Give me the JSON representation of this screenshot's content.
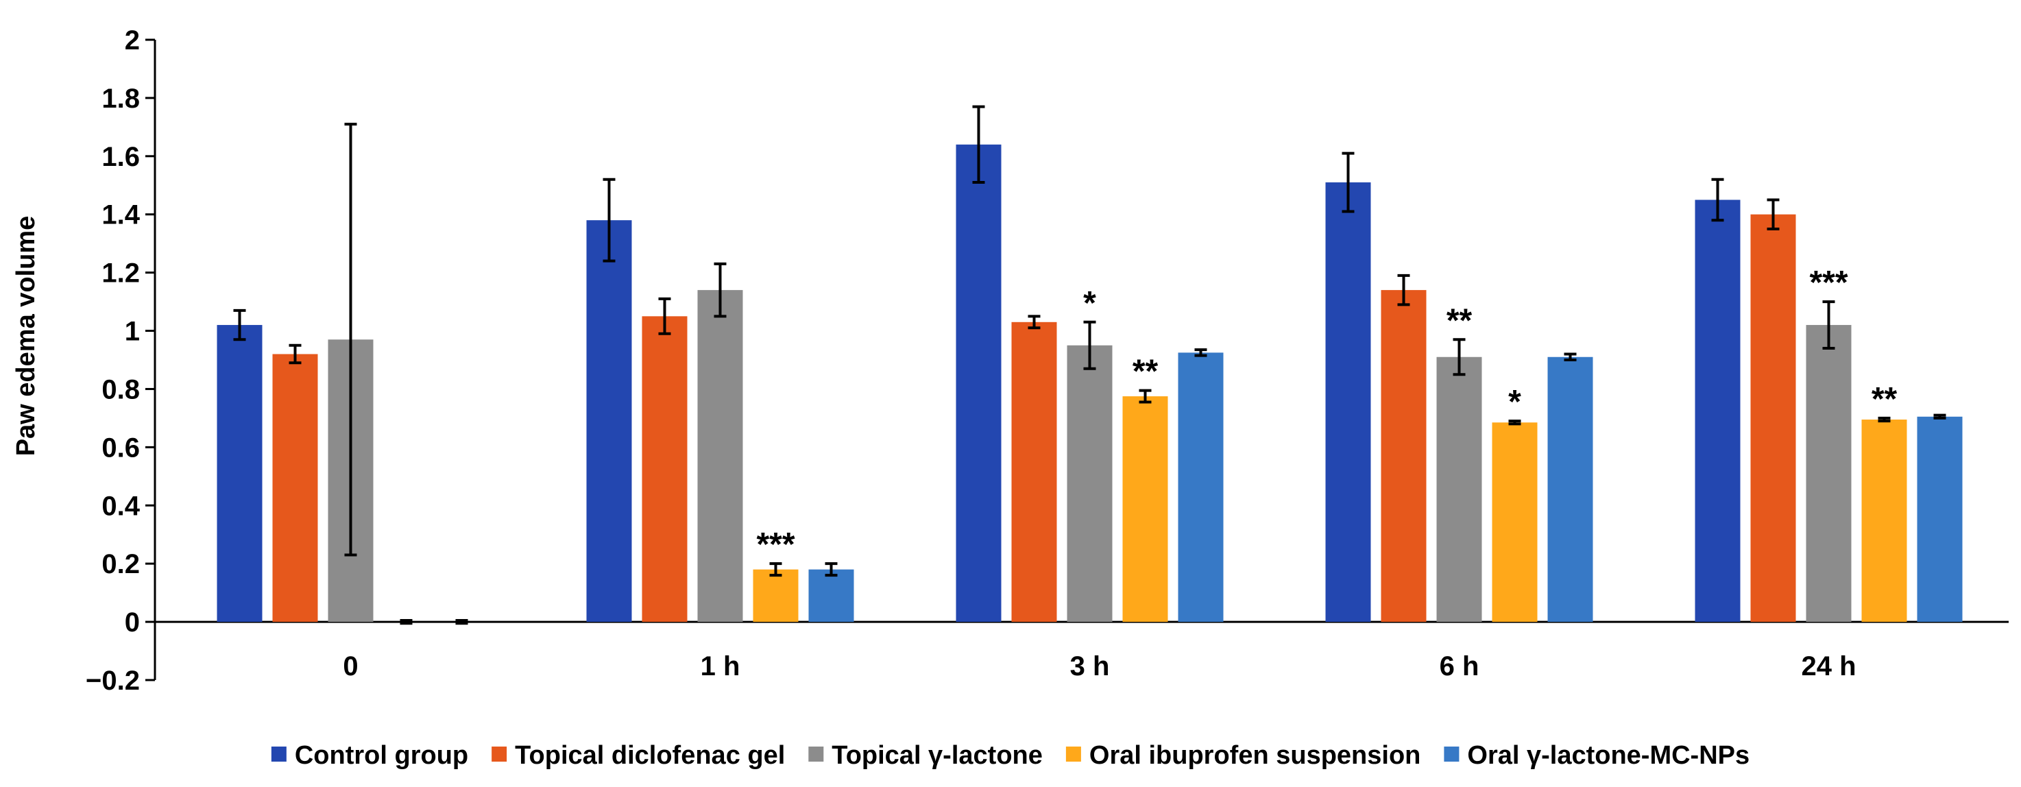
{
  "chart_data": {
    "type": "bar",
    "title": "",
    "xlabel": "",
    "ylabel": "Paw edema volume",
    "ylim": [
      -0.2,
      2
    ],
    "yticks": [
      -0.2,
      0,
      0.2,
      0.4,
      0.6,
      0.8,
      1,
      1.2,
      1.4,
      1.6,
      1.8,
      2
    ],
    "ytick_labels": [
      "−0.2",
      "0",
      "0.2",
      "0.4",
      "0.6",
      "0.8",
      "1",
      "1.2",
      "1.4",
      "1.6",
      "1.8",
      "2"
    ],
    "grid": false,
    "legend_position": "bottom",
    "categories": [
      "0",
      "1 h",
      "3 h",
      "6 h",
      "24 h"
    ],
    "series": [
      {
        "name": "Control group",
        "color": "#2347B0",
        "values": [
          1.02,
          1.38,
          1.64,
          1.51,
          1.45
        ],
        "errors": [
          0.05,
          0.14,
          0.13,
          0.1,
          0.07
        ],
        "annotations": [
          "",
          "",
          "",
          "",
          ""
        ]
      },
      {
        "name": "Topical diclofenac gel",
        "color": "#E6581C",
        "values": [
          0.92,
          1.05,
          1.03,
          1.14,
          1.4
        ],
        "errors": [
          0.03,
          0.06,
          0.02,
          0.05,
          0.05
        ],
        "annotations": [
          "",
          "",
          "",
          "",
          ""
        ]
      },
      {
        "name": "Topical γ-lactone",
        "color": "#8C8C8C",
        "values": [
          0.97,
          1.14,
          0.95,
          0.91,
          1.02
        ],
        "errors": [
          0.74,
          0.09,
          0.08,
          0.06,
          0.08
        ],
        "annotations": [
          "",
          "",
          "*",
          "**",
          "***"
        ]
      },
      {
        "name": "Oral ibuprofen suspension",
        "color": "#FFA81A",
        "values": [
          0,
          0.18,
          0.775,
          0.685,
          0.695
        ],
        "errors": [
          0.005,
          0.02,
          0.02,
          0.005,
          0.005
        ],
        "annotations": [
          "",
          "***",
          "**",
          "*",
          "**"
        ]
      },
      {
        "name": "Oral γ-lactone-MC-NPs",
        "color": "#3779C6",
        "values": [
          0,
          0.18,
          0.925,
          0.91,
          0.705
        ],
        "errors": [
          0.005,
          0.02,
          0.01,
          0.01,
          0.005
        ],
        "annotations": [
          "",
          "",
          "",
          "",
          ""
        ]
      }
    ]
  }
}
